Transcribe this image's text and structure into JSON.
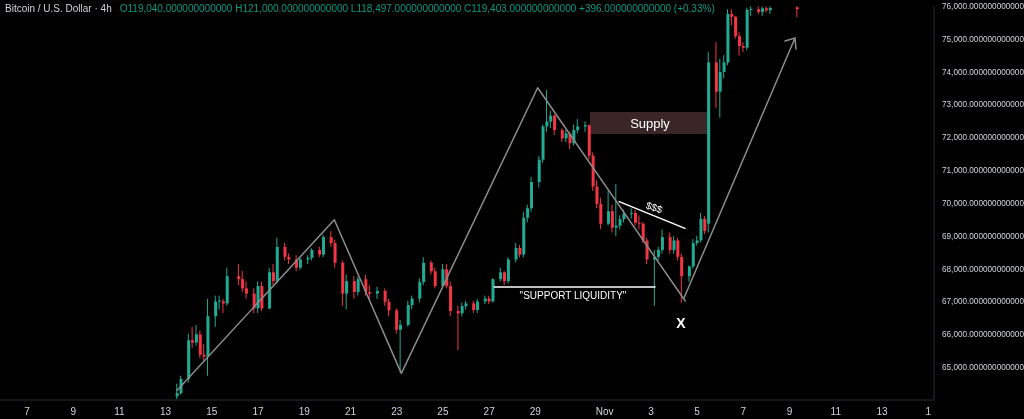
{
  "chart_data": {
    "type": "candlestick",
    "title": "Bitcoin / U.S. Dollar · 4h",
    "subtitle": "O119,040.000000000000  H121,000.000000000000  L118,497.000000000000  C119,403.000000000000  +396.000000000000 (+0.33%)",
    "x": [
      "--10-13T12:00",
      "--10-13T16:00",
      "--10-14T00:00",
      "--10-14T04:00",
      "--10-14T08:00",
      "--10-14T12:00",
      "--10-14T16:00",
      "--10-14T20:00",
      "--10-15T04:00",
      "--10-15T08:00",
      "--10-15T12:00",
      "--10-15T16:00",
      "--10-16T04:00",
      "--10-16T08:00",
      "--10-16T12:00",
      "--10-16T20:00",
      "--10-17T00:00",
      "--10-17T04:00",
      "--10-17T12:00",
      "--10-17T16:00",
      "--10-17T20:00",
      "--10-18T04:00",
      "--10-18T08:00",
      "--10-18T16:00",
      "--10-18T20:00",
      "--10-19T04:00",
      "--10-19T08:00",
      "--10-19T16:00",
      "--10-19T20:00",
      "--10-20T04:00",
      "--10-20T08:00",
      "--10-20T16:00",
      "--10-20T20:00",
      "--10-21T04:00",
      "--10-21T08:00",
      "--10-21T16:00",
      "--10-21T20:00",
      "--10-22T04:00",
      "--10-22T12:00",
      "--10-22T16:00",
      "--10-23T00:00",
      "--10-23T04:00",
      "--10-23T12:00",
      "--10-23T16:00",
      "--10-24T00:00",
      "--10-24T04:00",
      "--10-24T12:00",
      "--10-24T16:00",
      "--10-25T00:00",
      "--10-25T04:00",
      "--10-25T08:00",
      "--10-25T16:00",
      "--10-25T20:00",
      "--10-26T00:00",
      "--10-26T08:00",
      "--10-26T12:00",
      "--10-26T20:00",
      "--10-27T00:00",
      "--10-27T04:00",
      "--10-27T12:00",
      "--10-27T16:00",
      "--10-27T20:00",
      "--10-28T04:00",
      "--10-28T08:00",
      "--10-28T12:00",
      "--10-28T16:00",
      "--10-28T20:00",
      "--10-29T04:00",
      "--10-29T08:00",
      "--10-29T12:00",
      "--10-29T16:00",
      "--10-29T20:00",
      "--10-30T04:00",
      "--10-30T08:00",
      "--10-30T12:00",
      "--10-30T16:00",
      "--10-30T20:00",
      "--10-31T04:00",
      "--10-31T08:00",
      "--10-31T12:00",
      "--10-31T16:00",
      "--10-31T20:00",
      "--11-01T04:00",
      "--11-01T08:00",
      "--11-01T12:00",
      "--11-01T16:00",
      "--11-01T20:00",
      "--11-02T04:00",
      "--11-02T08:00",
      "--11-02T12:00",
      "--11-02T16:00",
      "--11-02T20:00",
      "--11-03T04:00",
      "--11-03T08:00",
      "--11-03T12:00",
      "--11-03T20:00",
      "--11-04T00:00",
      "--11-04T04:00",
      "--11-04T08:00",
      "--11-04T16:00",
      "--11-04T20:00",
      "--11-05T00:00",
      "--11-05T04:00",
      "--11-05T08:00",
      "--11-05T12:00",
      "--11-05T20:00",
      "--11-06T00:00",
      "--11-06T04:00",
      "--11-06T08:00",
      "--11-06T12:00",
      "--11-06T16:00",
      "--11-06T20:00",
      "--11-07T00:00",
      "--11-07T04:00",
      "--11-07T08:00",
      "--11-07T16:00",
      "--11-07T20:00",
      "--11-08T00:00",
      "--11-08T04:00",
      "--11-09T08:00"
    ],
    "ohlc": [
      [
        64110,
        64500,
        64030,
        64210
      ],
      [
        64210,
        64740,
        64160,
        64640
      ],
      [
        64640,
        66020,
        64530,
        65820
      ],
      [
        65820,
        66230,
        65590,
        65750
      ],
      [
        65750,
        66280,
        65650,
        66000
      ],
      [
        66000,
        66120,
        65270,
        65380
      ],
      [
        65380,
        65700,
        65170,
        65320
      ],
      [
        65320,
        67080,
        64740,
        66550
      ],
      [
        66550,
        67180,
        66230,
        67000
      ],
      [
        67000,
        67180,
        66760,
        67010
      ],
      [
        67010,
        67080,
        66650,
        66940
      ],
      [
        66940,
        68030,
        66870,
        67770
      ],
      [
        67770,
        68140,
        67500,
        67680
      ],
      [
        67680,
        67930,
        67290,
        67400
      ],
      [
        67400,
        67610,
        67080,
        67240
      ],
      [
        67240,
        67400,
        66650,
        66790
      ],
      [
        66790,
        67610,
        66650,
        67470
      ],
      [
        67470,
        67610,
        66710,
        66790
      ],
      [
        66790,
        68030,
        66760,
        67890
      ],
      [
        67890,
        68140,
        67500,
        67620
      ],
      [
        67620,
        68940,
        67550,
        68660
      ],
      [
        68660,
        68780,
        68250,
        68360
      ],
      [
        68360,
        68460,
        68140,
        68280
      ],
      [
        68280,
        68410,
        67930,
        68030
      ],
      [
        68030,
        68350,
        67970,
        68280
      ],
      [
        68280,
        68410,
        68140,
        68330
      ],
      [
        68330,
        68620,
        68250,
        68570
      ],
      [
        68570,
        68670,
        68350,
        68430
      ],
      [
        68430,
        69040,
        68350,
        68960
      ],
      [
        68960,
        69150,
        68670,
        68780
      ],
      [
        68780,
        68880,
        68030,
        68180
      ],
      [
        68180,
        68250,
        66870,
        67240
      ],
      [
        67240,
        67820,
        66760,
        67620
      ],
      [
        67620,
        67770,
        67080,
        67290
      ],
      [
        67290,
        67760,
        67180,
        67680
      ],
      [
        67680,
        67820,
        67180,
        67290
      ],
      [
        67290,
        67500,
        67080,
        67240
      ],
      [
        67240,
        67450,
        67080,
        67320
      ],
      [
        67320,
        67400,
        66870,
        66990
      ],
      [
        66990,
        67080,
        66550,
        66730
      ],
      [
        66730,
        66790,
        66020,
        66140
      ],
      [
        66140,
        66440,
        64850,
        66290
      ],
      [
        66290,
        67020,
        66230,
        66890
      ],
      [
        66890,
        67180,
        66760,
        67090
      ],
      [
        67090,
        67710,
        66970,
        67590
      ],
      [
        67590,
        68350,
        67500,
        68180
      ],
      [
        68180,
        68250,
        67820,
        67920
      ],
      [
        67920,
        68030,
        67400,
        67470
      ],
      [
        67470,
        68140,
        67400,
        67980
      ],
      [
        67980,
        68140,
        67400,
        67470
      ],
      [
        67470,
        67610,
        66550,
        66710
      ],
      [
        66710,
        66870,
        65520,
        66640
      ],
      [
        66640,
        66970,
        66550,
        66860
      ],
      [
        66860,
        67020,
        66760,
        66940
      ],
      [
        66940,
        67020,
        66650,
        66740
      ],
      [
        66740,
        67080,
        66650,
        67000
      ],
      [
        67000,
        67180,
        66920,
        67090
      ],
      [
        67090,
        67180,
        66920,
        67000
      ],
      [
        67000,
        67710,
        66970,
        67680
      ],
      [
        67680,
        68030,
        67610,
        67890
      ],
      [
        67890,
        67930,
        67500,
        67620
      ],
      [
        67620,
        68350,
        67550,
        68280
      ],
      [
        68280,
        68780,
        68190,
        68630
      ],
      [
        68630,
        68720,
        68350,
        68430
      ],
      [
        68430,
        69730,
        68350,
        69550
      ],
      [
        69550,
        69950,
        69410,
        69840
      ],
      [
        69840,
        70790,
        69730,
        70640
      ],
      [
        70640,
        71430,
        70470,
        71320
      ],
      [
        71320,
        72390,
        71220,
        72330
      ],
      [
        72330,
        73440,
        72170,
        72480
      ],
      [
        72480,
        72810,
        72280,
        72660
      ],
      [
        72660,
        72700,
        72070,
        72220
      ],
      [
        72220,
        72280,
        71860,
        71970
      ],
      [
        71970,
        72230,
        71860,
        72120
      ],
      [
        72120,
        72170,
        71640,
        71820
      ],
      [
        71820,
        72390,
        71750,
        72220
      ],
      [
        72220,
        72550,
        72120,
        72330
      ],
      [
        72330,
        72490,
        72170,
        72370
      ],
      [
        72370,
        72390,
        71320,
        71440
      ],
      [
        71440,
        71540,
        70370,
        70500
      ],
      [
        70500,
        70690,
        69840,
        69970
      ],
      [
        69970,
        70160,
        69200,
        69370
      ],
      [
        69370,
        70370,
        69310,
        69750
      ],
      [
        69750,
        69950,
        69100,
        69250
      ],
      [
        69250,
        70580,
        68990,
        69310
      ],
      [
        69310,
        69620,
        69200,
        69510
      ],
      [
        69510,
        69790,
        69410,
        69670
      ],
      [
        69670,
        69840,
        69520,
        69700
      ],
      [
        69700,
        69790,
        69310,
        69400
      ],
      [
        69400,
        69620,
        69200,
        69370
      ],
      [
        69370,
        69410,
        68780,
        68860
      ],
      [
        68860,
        68940,
        68140,
        68280
      ],
      [
        68280,
        68570,
        66870,
        68360
      ],
      [
        68360,
        68670,
        68250,
        68570
      ],
      [
        68570,
        69200,
        68460,
        68960
      ],
      [
        68960,
        69100,
        68460,
        68570
      ],
      [
        68570,
        68990,
        68460,
        68860
      ],
      [
        68860,
        68940,
        68250,
        68360
      ],
      [
        68360,
        68460,
        66960,
        67770
      ],
      [
        67770,
        68100,
        67600,
        68070
      ],
      [
        68070,
        68900,
        68000,
        68780
      ],
      [
        68780,
        69000,
        68700,
        68860
      ],
      [
        68860,
        69700,
        68800,
        69520
      ],
      [
        69520,
        69600,
        69050,
        69150
      ],
      [
        69370,
        74600,
        69100,
        74280
      ],
      [
        74280,
        74900,
        72900,
        73390
      ],
      [
        73390,
        74400,
        72600,
        73990
      ],
      [
        73990,
        74500,
        73800,
        74280
      ],
      [
        74280,
        75900,
        74200,
        75760
      ],
      [
        75760,
        75900,
        75400,
        75670
      ],
      [
        75670,
        75700,
        75000,
        75080
      ],
      [
        75080,
        75200,
        74490,
        74780
      ],
      [
        74780,
        74900,
        74600,
        74730
      ],
      [
        74730,
        75950,
        74650,
        75880
      ],
      [
        75880,
        75990,
        75700,
        75900
      ],
      [
        75900,
        75990,
        75750,
        75820
      ],
      [
        75820,
        75980,
        75700,
        75930
      ],
      [
        75930,
        75990,
        75800,
        75870
      ],
      [
        75870,
        75990,
        75760,
        75940
      ],
      [
        75960,
        75990,
        75650,
        75900
      ]
    ],
    "series": [
      {
        "type": "line",
        "x": [
          "--10-13T11:31",
          "--10-20T07:12",
          "--10-23T04:48",
          "--10-29T02:24",
          "--11-04T12:00"
        ],
        "values": [
          64280,
          69490,
          64810,
          73510,
          67000
        ],
        "color": "#8c8c8c"
      },
      {
        "type": "line",
        "x": [
          "--11-01T14:24",
          "--11-04T12:00"
        ],
        "values": [
          70050,
          69220
        ],
        "color": "#ffffff"
      },
      {
        "type": "line",
        "x": [
          "--10-27T04:48",
          "--11-03T04:48"
        ],
        "values": [
          67440,
          67440
        ],
        "color": "#ffffff"
      }
    ],
    "annotations": [
      "Supply",
      "$$$",
      "\"SUPPORT LIQUIDITY\"",
      "X"
    ],
    "xlim": [
      "--10-05T20:00",
      "--11-15T06:00"
    ],
    "xticks": [
      {
        "value": "--10-07",
        "label": "7"
      },
      {
        "value": "--10-09",
        "label": "9"
      },
      {
        "value": "--10-11",
        "label": "11"
      },
      {
        "value": "--10-13",
        "label": "13"
      },
      {
        "value": "--10-15",
        "label": "15"
      },
      {
        "value": "--10-17",
        "label": "17"
      },
      {
        "value": "--10-19",
        "label": "19"
      },
      {
        "value": "--10-21",
        "label": "21"
      },
      {
        "value": "--10-23",
        "label": "23"
      },
      {
        "value": "--10-25",
        "label": "25"
      },
      {
        "value": "--10-27",
        "label": "27"
      },
      {
        "value": "--10-29",
        "label": "29"
      },
      {
        "value": "--11-01",
        "label": "Nov"
      },
      {
        "value": "--11-03",
        "label": "3"
      },
      {
        "value": "--11-05",
        "label": "5"
      },
      {
        "value": "--11-07",
        "label": "7"
      },
      {
        "value": "--11-09",
        "label": "9"
      },
      {
        "value": "--11-11",
        "label": "11"
      },
      {
        "value": "--11-13",
        "label": "13"
      },
      {
        "value": "--11-15",
        "label": "1"
      }
    ],
    "ylim": [
      64000,
      76000
    ],
    "yticks": [
      {
        "value": 65000,
        "label": "65,000.000000000000"
      },
      {
        "value": 66000,
        "label": "66,000.000000000000"
      },
      {
        "value": 67000,
        "label": "67,000.000000000000"
      },
      {
        "value": 68000,
        "label": "68,000.000000000000"
      },
      {
        "value": 69000,
        "label": "69,000.000000000000"
      },
      {
        "value": 70000,
        "label": "70,000.000000000000"
      },
      {
        "value": 71000,
        "label": "71,000.000000000000"
      },
      {
        "value": 72000,
        "label": "72,000.000000000000"
      },
      {
        "value": 73000,
        "label": "73,000.000000000000"
      },
      {
        "value": 74000,
        "label": "74,000.000000000000"
      },
      {
        "value": 75000,
        "label": "75,000.000000000000"
      },
      {
        "value": 76000,
        "label": "76,000.000000000000"
      }
    ]
  }
}
